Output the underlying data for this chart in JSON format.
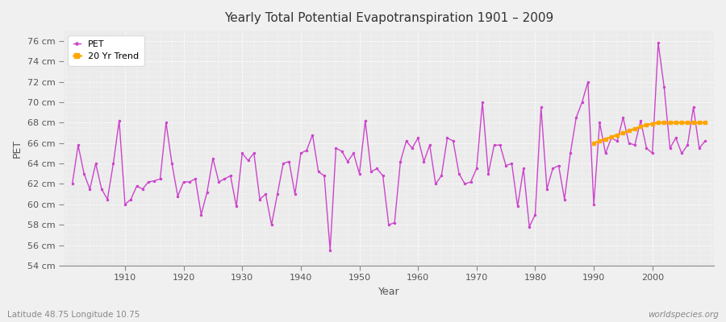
{
  "title": "Yearly Total Potential Evapotranspiration 1901 – 2009",
  "ylabel": "PET",
  "xlabel": "Year",
  "footnote_left": "Latitude 48.75 Longitude 10.75",
  "footnote_right": "worldspecies.org",
  "pet_color": "#cc44cc",
  "trend_color": "#FFA500",
  "ylim": [
    54,
    77
  ],
  "yticks": [
    54,
    56,
    58,
    60,
    62,
    64,
    66,
    68,
    70,
    72,
    74,
    76
  ],
  "xlim": [
    1899.5,
    2010.5
  ],
  "xticks": [
    1910,
    1920,
    1930,
    1940,
    1950,
    1960,
    1970,
    1980,
    1990,
    2000
  ],
  "fig_bg": "#f5f5f5",
  "plot_bg": "#f0f0f0",
  "years": [
    1901,
    1902,
    1903,
    1904,
    1905,
    1906,
    1907,
    1908,
    1909,
    1910,
    1911,
    1912,
    1913,
    1914,
    1915,
    1916,
    1917,
    1918,
    1919,
    1920,
    1921,
    1922,
    1923,
    1924,
    1925,
    1926,
    1927,
    1928,
    1929,
    1930,
    1931,
    1932,
    1933,
    1934,
    1935,
    1936,
    1937,
    1938,
    1939,
    1940,
    1941,
    1942,
    1943,
    1944,
    1945,
    1946,
    1947,
    1948,
    1949,
    1950,
    1951,
    1952,
    1953,
    1954,
    1955,
    1956,
    1957,
    1958,
    1959,
    1960,
    1961,
    1962,
    1963,
    1964,
    1965,
    1966,
    1967,
    1968,
    1969,
    1970,
    1971,
    1972,
    1973,
    1974,
    1975,
    1976,
    1977,
    1978,
    1979,
    1980,
    1981,
    1982,
    1983,
    1984,
    1985,
    1986,
    1987,
    1988,
    1989,
    1990,
    1991,
    1992,
    1993,
    1994,
    1995,
    1996,
    1997,
    1998,
    1999,
    2000,
    2001,
    2002,
    2003,
    2004,
    2005,
    2006,
    2007,
    2008,
    2009
  ],
  "pet": [
    62.0,
    65.8,
    63.0,
    61.5,
    64.0,
    61.5,
    60.5,
    64.0,
    68.2,
    60.0,
    60.5,
    61.8,
    61.5,
    62.2,
    62.3,
    62.5,
    68.0,
    64.0,
    60.8,
    62.2,
    62.2,
    62.5,
    59.0,
    61.2,
    64.5,
    62.2,
    62.5,
    62.8,
    59.8,
    65.0,
    64.3,
    65.0,
    60.5,
    61.0,
    58.0,
    61.0,
    64.0,
    64.2,
    61.0,
    65.0,
    65.3,
    66.8,
    63.2,
    62.8,
    55.5,
    65.5,
    65.2,
    64.2,
    65.0,
    63.0,
    68.2,
    63.2,
    63.5,
    62.8,
    58.0,
    58.2,
    64.2,
    66.2,
    65.5,
    66.5,
    64.2,
    65.8,
    62.0,
    62.8,
    66.5,
    66.2,
    63.0,
    62.0,
    62.2,
    63.5,
    70.0,
    63.0,
    65.8,
    65.8,
    63.8,
    64.0,
    59.8,
    63.5,
    57.8,
    59.0,
    69.5,
    61.5,
    63.5,
    63.8,
    60.5,
    65.0,
    68.5,
    70.0,
    72.0,
    60.0,
    68.0,
    65.0,
    66.5,
    66.2,
    68.5,
    66.0,
    65.8,
    68.2,
    65.5,
    65.0,
    75.8,
    71.5,
    65.5,
    66.5,
    65.0,
    65.8,
    69.5,
    65.5,
    66.2
  ],
  "trend_years": [
    1990,
    1991,
    1992,
    1993,
    1994,
    1995,
    1996,
    1997,
    1998,
    1999,
    2000,
    2001,
    2002,
    2003,
    2004,
    2005,
    2006,
    2007,
    2008,
    2009
  ],
  "trend_values": [
    66.0,
    66.2,
    66.4,
    66.6,
    66.8,
    67.0,
    67.2,
    67.4,
    67.6,
    67.8,
    67.9,
    68.0,
    68.0,
    68.0,
    68.0,
    68.0,
    68.0,
    68.0,
    68.0,
    68.0
  ]
}
